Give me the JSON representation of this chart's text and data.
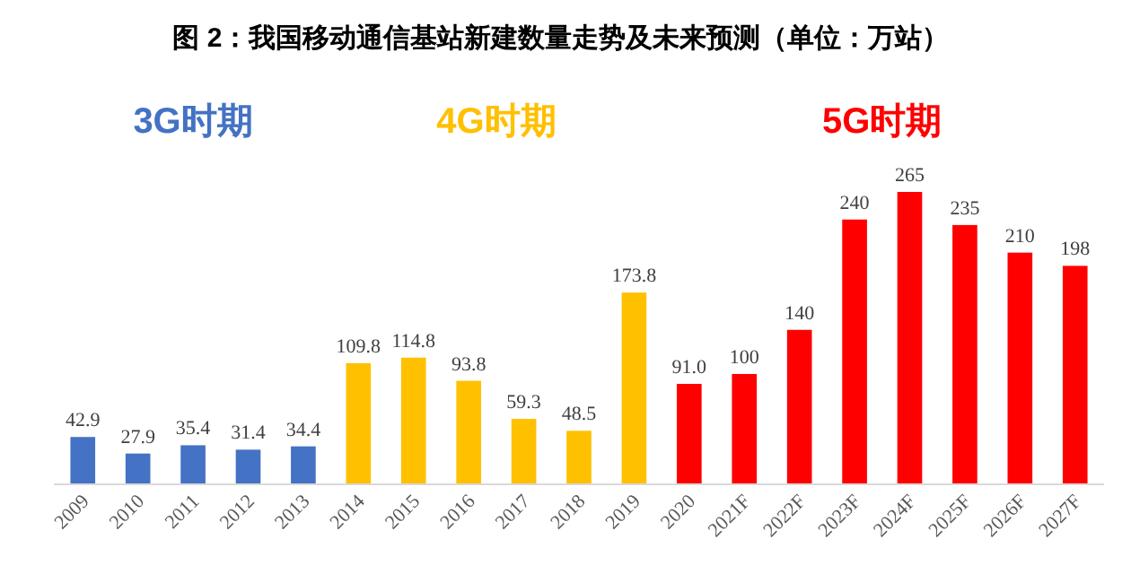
{
  "chart_data": {
    "type": "bar",
    "title": "图 2：我国移动通信基站新建数量走势及未来预测（单位：万站）",
    "categories": [
      "2009",
      "2010",
      "2011",
      "2012",
      "2013",
      "2014",
      "2015",
      "2016",
      "2017",
      "2018",
      "2019",
      "2020",
      "2021F",
      "2022F",
      "2023F",
      "2024F",
      "2025F",
      "2026F",
      "2027F"
    ],
    "values": [
      42.9,
      27.9,
      35.4,
      31.4,
      34.4,
      109.8,
      114.8,
      93.8,
      59.3,
      48.5,
      173.8,
      91.0,
      100,
      140,
      240,
      265,
      235,
      210,
      198
    ],
    "value_labels": [
      "42.9",
      "27.9",
      "35.4",
      "31.4",
      "34.4",
      "109.8",
      "114.8",
      "93.8",
      "59.3",
      "48.5",
      "173.8",
      "91.0",
      "100",
      "140",
      "240",
      "265",
      "235",
      "210",
      "198"
    ],
    "colors": [
      "#4472c4",
      "#4472c4",
      "#4472c4",
      "#4472c4",
      "#4472c4",
      "#ffc000",
      "#ffc000",
      "#ffc000",
      "#ffc000",
      "#ffc000",
      "#ffc000",
      "#ff0000",
      "#ff0000",
      "#ff0000",
      "#ff0000",
      "#ff0000",
      "#ff0000",
      "#ff0000",
      "#ff0000"
    ],
    "annotations": [
      "3G时期",
      "4G时期",
      "5G时期"
    ]
  }
}
